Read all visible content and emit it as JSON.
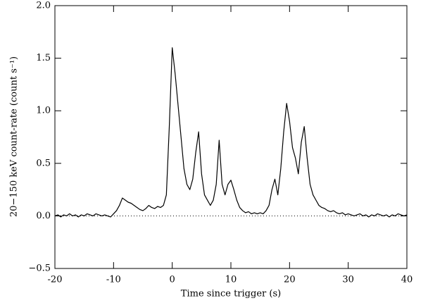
{
  "chart_data": {
    "type": "line",
    "xlabel": "Time since trigger (s)",
    "ylabel": "20−150 keV count-rate (count s⁻¹)",
    "color": "#000000",
    "hline": 0,
    "x": [
      -20,
      -19.5,
      -19,
      -18.5,
      -18,
      -17.5,
      -17,
      -16.5,
      -16,
      -15.5,
      -15,
      -14.5,
      -14,
      -13.5,
      -13,
      -12.5,
      -12,
      -11.5,
      -11,
      -10.5,
      -10,
      -9.5,
      -9,
      -8.5,
      -8,
      -7.5,
      -7,
      -6.5,
      -6,
      -5.5,
      -5,
      -4.5,
      -4,
      -3.5,
      -3,
      -2.5,
      -2,
      -1.5,
      -1,
      -0.5,
      0,
      0.5,
      1,
      1.5,
      2,
      2.5,
      3,
      3.5,
      4,
      4.5,
      5,
      5.5,
      6,
      6.5,
      7,
      7.5,
      8,
      8.5,
      9,
      9.5,
      10,
      10.5,
      11,
      11.5,
      12,
      12.5,
      13,
      13.5,
      14,
      14.5,
      15,
      15.5,
      16,
      16.5,
      17,
      17.5,
      18,
      18.5,
      19,
      19.5,
      20,
      20.5,
      21,
      21.5,
      22,
      22.5,
      23,
      23.5,
      24,
      24.5,
      25,
      25.5,
      26,
      26.5,
      27,
      27.5,
      28,
      28.5,
      29,
      29.5,
      30,
      30.5,
      31,
      31.5,
      32,
      32.5,
      33,
      33.5,
      34,
      34.5,
      35,
      35.5,
      36,
      36.5,
      37,
      37.5,
      38,
      38.5,
      39,
      39.5,
      40
    ],
    "values": [
      0.0,
      0.01,
      -0.01,
      0.01,
      0.0,
      0.02,
      0.0,
      0.01,
      -0.01,
      0.01,
      0.0,
      0.02,
      0.01,
      0.0,
      0.02,
      0.01,
      0.0,
      0.01,
      0.0,
      -0.01,
      0.02,
      0.05,
      0.1,
      0.17,
      0.15,
      0.13,
      0.12,
      0.1,
      0.08,
      0.06,
      0.05,
      0.07,
      0.1,
      0.08,
      0.07,
      0.09,
      0.08,
      0.1,
      0.2,
      0.85,
      1.6,
      1.35,
      1.05,
      0.75,
      0.45,
      0.3,
      0.25,
      0.35,
      0.6,
      0.8,
      0.4,
      0.2,
      0.15,
      0.1,
      0.15,
      0.3,
      0.72,
      0.3,
      0.2,
      0.3,
      0.34,
      0.25,
      0.15,
      0.08,
      0.05,
      0.03,
      0.04,
      0.02,
      0.03,
      0.02,
      0.03,
      0.02,
      0.05,
      0.1,
      0.25,
      0.35,
      0.2,
      0.45,
      0.8,
      1.07,
      0.9,
      0.65,
      0.55,
      0.4,
      0.7,
      0.85,
      0.55,
      0.3,
      0.2,
      0.15,
      0.1,
      0.08,
      0.07,
      0.05,
      0.04,
      0.05,
      0.03,
      0.02,
      0.03,
      0.01,
      0.02,
      0.01,
      0.0,
      0.01,
      0.02,
      0.0,
      0.01,
      -0.01,
      0.01,
      0.0,
      0.02,
      0.01,
      0.0,
      0.01,
      -0.01,
      0.01,
      0.0,
      0.02,
      0.01,
      0.0,
      0.01
    ],
    "xlim": [
      -20,
      40
    ],
    "xticks": [
      -20,
      -10,
      0,
      10,
      20,
      30,
      40
    ],
    "ylim": [
      -0.5,
      2.0
    ],
    "yticks": [
      {
        "value": -0.5,
        "label": "−0.5"
      },
      {
        "value": 0,
        "label": "0.0"
      },
      0.5,
      {
        "value": 1,
        "label": "1.0"
      },
      1.5,
      {
        "value": 2,
        "label": "2.0"
      }
    ]
  }
}
